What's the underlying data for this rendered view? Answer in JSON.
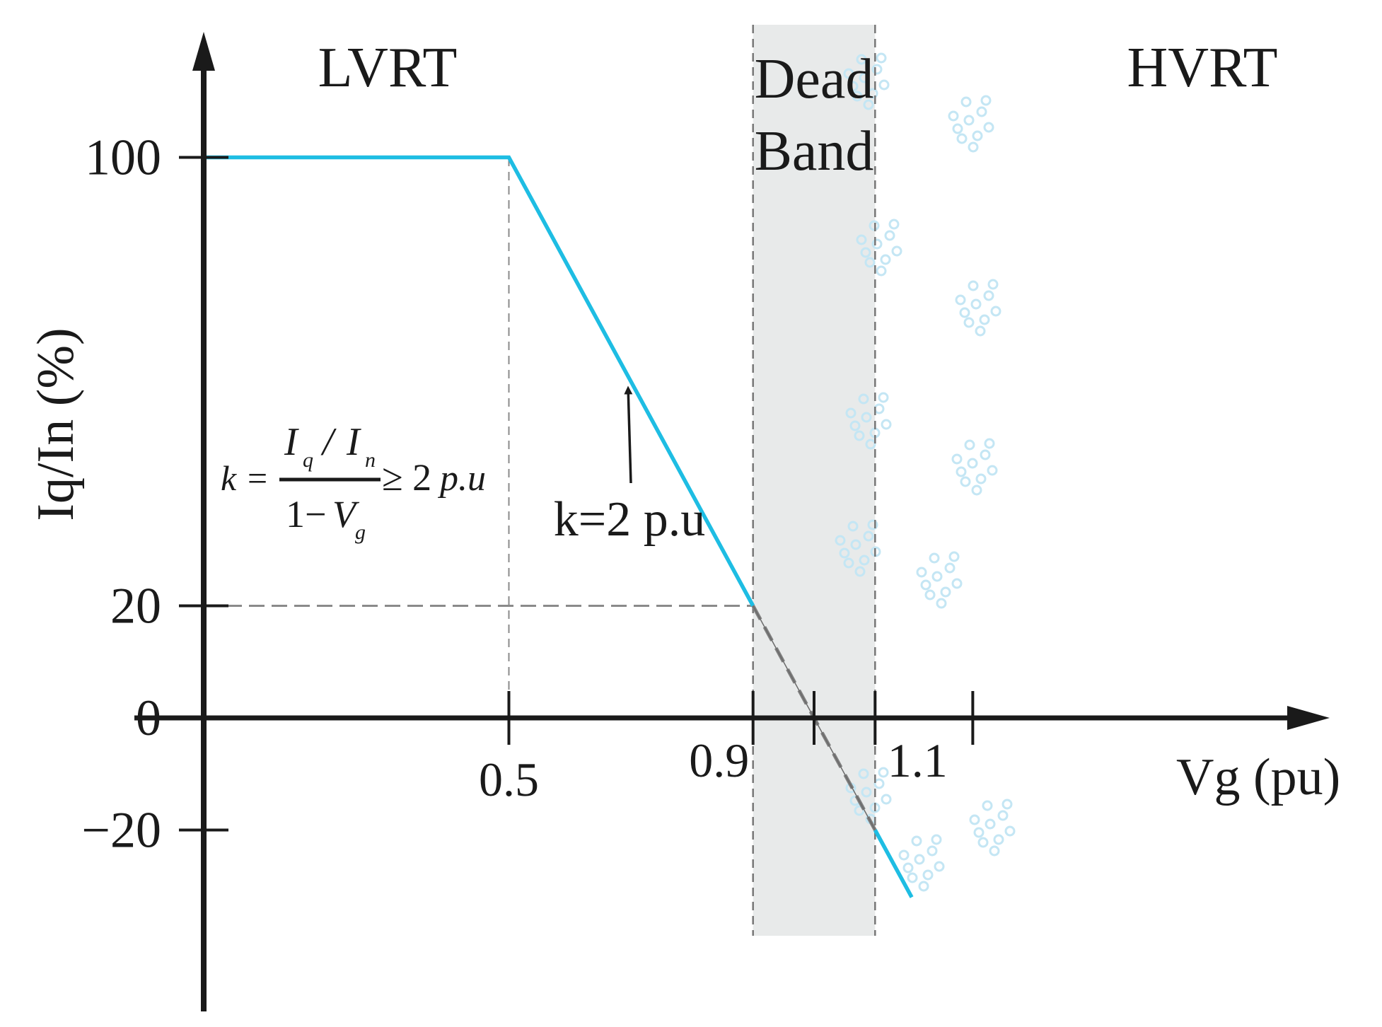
{
  "chart_data": {
    "type": "line",
    "xlabel": "Vg (pu)",
    "ylabel": "Iq/In (%)",
    "x_ticks": [
      {
        "value": 0.5,
        "label": "0.5"
      },
      {
        "value": 0.9,
        "label": "0.9"
      },
      {
        "value": 1.1,
        "label": "1.1"
      }
    ],
    "x_unlabeled_ticks": [
      1.0,
      1.26
    ],
    "y_ticks": [
      {
        "value": 100,
        "label": "100"
      },
      {
        "value": 20,
        "label": "20"
      },
      {
        "value": 0,
        "label": "0"
      },
      {
        "value": -20,
        "label": "−20"
      }
    ],
    "xlim": [
      0,
      1.5
    ],
    "ylim": [
      -42,
      122
    ],
    "series": [
      {
        "color": "#1ebde3",
        "x": [
          0,
          0.5,
          0.9
        ],
        "y": [
          100,
          100,
          20
        ]
      },
      {
        "color": "#1ebde3",
        "x": [
          1.1,
          1.16
        ],
        "y": [
          -20,
          -32
        ]
      },
      {
        "color": "#7f7f7f",
        "style": "dashed",
        "x": [
          0.9,
          1.1
        ],
        "y": [
          20,
          -20
        ]
      }
    ],
    "dead_band": {
      "x_range": [
        0.9,
        1.1
      ],
      "color": "#e8eaea",
      "label_line1": "Dead",
      "label_line2": "Band"
    },
    "region_labels": {
      "left": "LVRT",
      "right": "HVRT"
    },
    "annotation": {
      "text": "k=2 p.u",
      "arrow_to": {
        "x": 0.7,
        "y": 60
      }
    },
    "formula": {
      "lhs": "k =",
      "num_I": "I",
      "num_sub_q": "q",
      "num_slash": "/",
      "num_I2": "I",
      "num_sub_n": "n",
      "den_1": "1−",
      "den_V": "V",
      "den_sub_g": "g",
      "rhs": "≥ 2",
      "rhs_unit": "p.u"
    },
    "guide_lines": [
      {
        "from": [
          0.5,
          0
        ],
        "to": [
          0.5,
          100
        ]
      },
      {
        "from": [
          0,
          20
        ],
        "to": [
          0.9,
          20
        ]
      }
    ],
    "colors": {
      "axis": "#1a1a1a",
      "curve": "#1ebde3",
      "guide": "#8a8a8a",
      "band_border": "#777777"
    }
  }
}
